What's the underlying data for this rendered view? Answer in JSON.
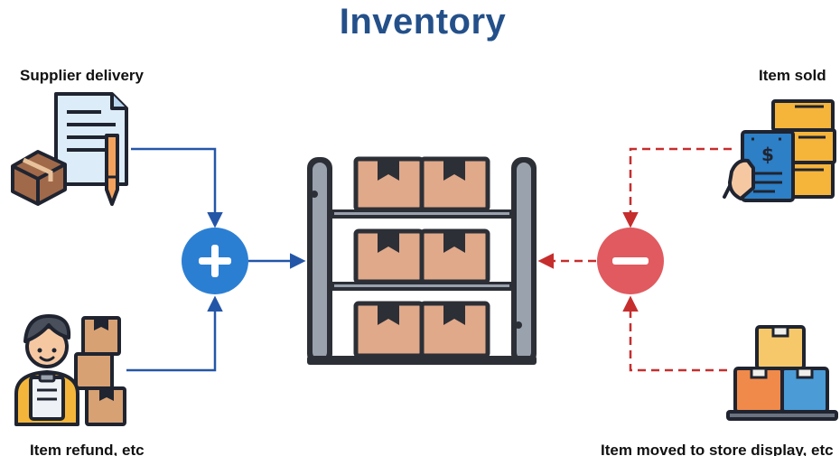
{
  "title": "Inventory",
  "sources": {
    "supplier_delivery": "Supplier delivery",
    "item_refund": "Item refund, etc"
  },
  "sinks": {
    "item_sold": "Item sold",
    "item_moved": "Item moved to store display, etc"
  },
  "operators": {
    "add_symbol": "plus",
    "subtract_symbol": "minus"
  },
  "colors": {
    "title": "#24508a",
    "add": "#2b7fd3",
    "add_line": "#2456a8",
    "subtract": "#e05a5f",
    "subtract_line": "#c62e2e",
    "shelf": "#2c2f36",
    "box": "#e0a98a"
  }
}
